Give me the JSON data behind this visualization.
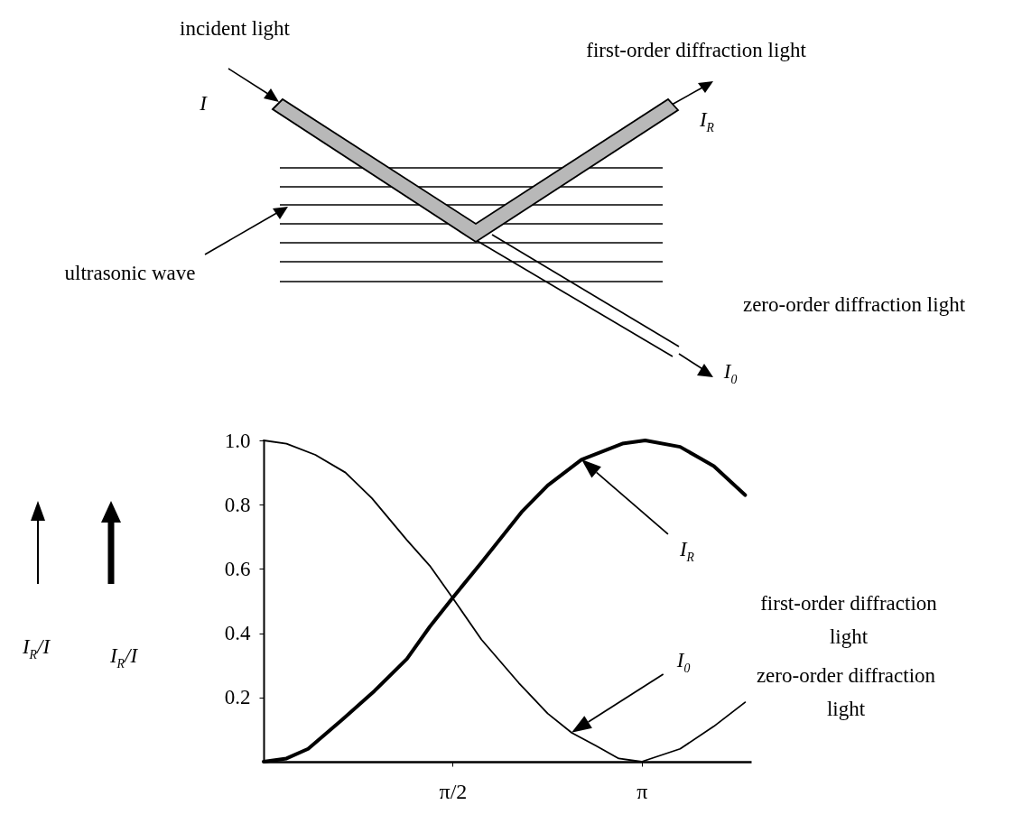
{
  "chart_data": {
    "type": "line",
    "series": [
      {
        "color": "#000000",
        "x": [
          0,
          0.19,
          0.43,
          0.68,
          0.9,
          1.19,
          1.38,
          1.57,
          1.81,
          2.12,
          2.36,
          2.56,
          2.76,
          2.95,
          3.14,
          3.46,
          3.74,
          4.0
        ],
        "values": [
          1.0,
          0.99,
          0.955,
          0.9,
          0.82,
          0.69,
          0.61,
          0.51,
          0.38,
          0.245,
          0.15,
          0.09,
          0.05,
          0.01,
          0,
          0.04,
          0.11,
          0.185
        ]
      },
      {
        "color": "#000000",
        "x": [
          0,
          0.19,
          0.37,
          0.65,
          0.92,
          1.19,
          1.38,
          1.57,
          1.81,
          2.15,
          2.36,
          2.64,
          2.98,
          3.17,
          3.46,
          3.74,
          4.0
        ],
        "values": [
          0,
          0.01,
          0.04,
          0.13,
          0.22,
          0.32,
          0.42,
          0.51,
          0.62,
          0.78,
          0.86,
          0.94,
          0.99,
          1.0,
          0.98,
          0.92,
          0.83
        ]
      }
    ],
    "xlim": [
      0,
      4.05
    ],
    "xticks": [
      {
        "value": 1.5708,
        "label": "π/2"
      },
      {
        "value": 3.1416,
        "label": "π"
      }
    ],
    "ylim": [
      0,
      1
    ],
    "yticks": [
      0.2,
      0.4,
      0.6,
      0.8,
      {
        "value": 1,
        "label": "1.0"
      }
    ],
    "grid": false,
    "annotations": [
      "incident light",
      "first-order diffraction light",
      "I",
      "I$_{R}$",
      "ultrasonic wave",
      "zero-order diffraction light",
      "I$_{0}$",
      "I$_{R}$",
      "I$_{0}$",
      "first-order diffraction light",
      "zero-order diffraction light",
      "I$_{R}$/I",
      "I$_{R}$/I"
    ]
  }
}
